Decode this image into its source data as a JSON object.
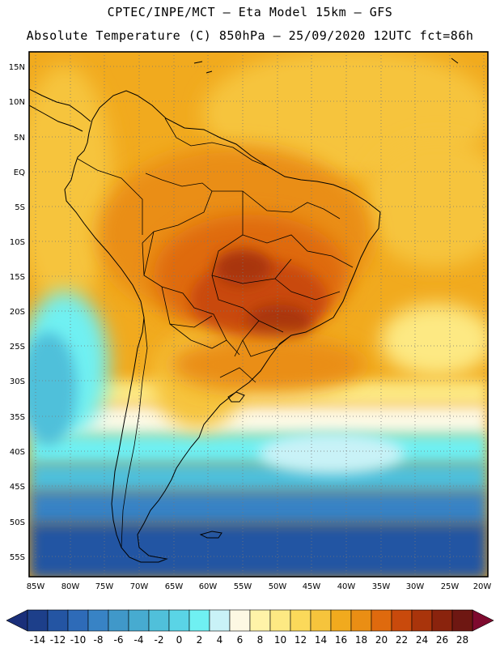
{
  "header": {
    "line1": "CPTEC/INPE/MCT –  Eta Model 15km – GFS",
    "line2": "Absolute Temperature (C) 850hPa – 25/09/2020 12UTC fct=86h"
  },
  "map": {
    "lat_labels": [
      "15N",
      "10N",
      "5N",
      "EQ",
      "5S",
      "10S",
      "15S",
      "20S",
      "25S",
      "30S",
      "35S",
      "40S",
      "45S",
      "50S",
      "55S"
    ],
    "lon_labels": [
      "85W",
      "80W",
      "75W",
      "70W",
      "65W",
      "60W",
      "55W",
      "50W",
      "45W",
      "40W",
      "35W",
      "30W",
      "25W",
      "20W"
    ]
  },
  "colorbar": {
    "labels": [
      "-14",
      "-12",
      "-10",
      "-8",
      "-6",
      "-4",
      "-2",
      "0",
      "2",
      "4",
      "6",
      "8",
      "10",
      "12",
      "14",
      "16",
      "18",
      "20",
      "22",
      "24",
      "26",
      "28"
    ],
    "colors": [
      "#1d3f8a",
      "#2455a3",
      "#2e6bb8",
      "#3883c5",
      "#4098c9",
      "#47abd0",
      "#50c0da",
      "#5ad4e6",
      "#6ff0f2",
      "#c9f2f7",
      "#fdf8e3",
      "#fff3a8",
      "#fde983",
      "#fbd95a",
      "#f6c43c",
      "#f1aa1e",
      "#ea8e14",
      "#df6a0e",
      "#c94a0c",
      "#a9340b",
      "#8a230d",
      "#6e1712"
    ],
    "under_color": "#1a2f7a",
    "over_color": "#7e0a2e"
  },
  "colors": {
    "background": "#ffffff",
    "grid": "#777777",
    "coast": "#000000"
  }
}
